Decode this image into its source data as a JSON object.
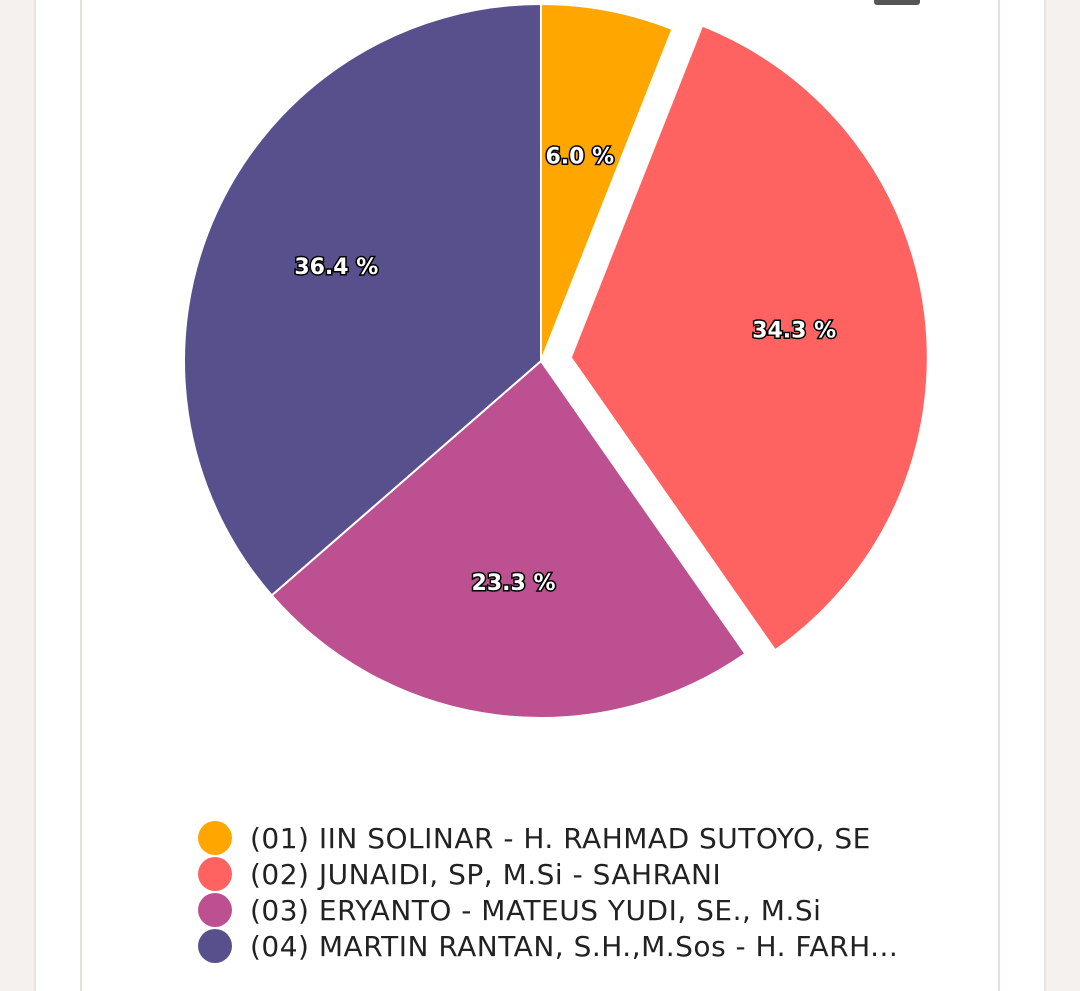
{
  "chart_data": {
    "type": "pie",
    "slices": [
      {
        "label": "(01) IIN SOLINAR - H. RAHMAD SUTOYO, SE",
        "value": 6.0,
        "value_label": "6.0 %",
        "color": "#ffa600",
        "exploded": false
      },
      {
        "label": "(02) JUNAIDI, SP, M.Si - SAHRANI",
        "value": 34.3,
        "value_label": "34.3 %",
        "color": "#ff6361",
        "exploded": true
      },
      {
        "label": "(03) ERYANTO - MATEUS YUDI, SE., M.Si",
        "value": 23.3,
        "value_label": "23.3 %",
        "color": "#bc5090",
        "exploded": false
      },
      {
        "label": "(04) MARTIN RANTAN, S.H.,M.Sos - H. FARH...",
        "value": 36.4,
        "value_label": "36.4 %",
        "color": "#58508d",
        "exploded": false
      }
    ],
    "start_angle_deg": 0,
    "direction": "clockwise",
    "legend_position": "bottom-left"
  }
}
